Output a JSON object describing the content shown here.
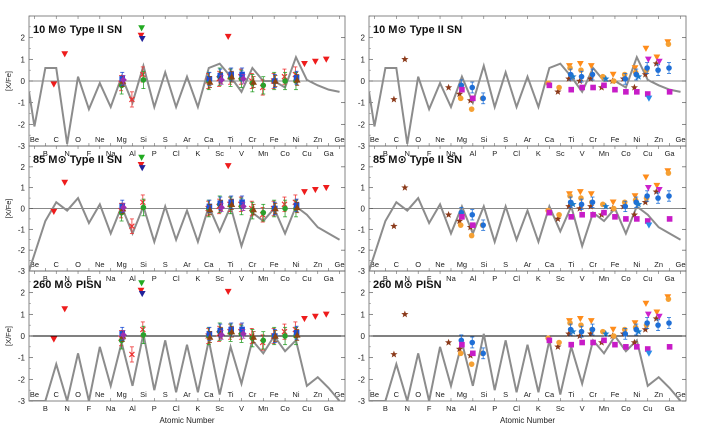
{
  "chart_data": [
    {
      "type": "scatter",
      "title": "10 M⊙ Type II SN",
      "ylabel": "[X/Fe]",
      "xlabel": "",
      "ylim": [
        -3,
        3
      ],
      "zero_line": "gray",
      "model": "10M"
    },
    {
      "type": "scatter",
      "title": "10 M⊙ Type II SN",
      "ylabel": "",
      "xlabel": "",
      "ylim": [
        -3,
        3
      ],
      "zero_line": "gray",
      "model": "10M"
    },
    {
      "type": "scatter",
      "title": "85 M⊙ Type II SN",
      "ylabel": "[X/Fe]",
      "xlabel": "",
      "ylim": [
        -3,
        3
      ],
      "zero_line": "gray",
      "model": "85M"
    },
    {
      "type": "scatter",
      "title": "85 M⊙ Type II SN",
      "ylabel": "",
      "xlabel": "",
      "ylim": [
        -3,
        3
      ],
      "zero_line": "gray",
      "model": "85M"
    },
    {
      "type": "scatter",
      "title": "260 M⊙ PISN",
      "ylabel": "[X/Fe]",
      "xlabel": "Atomic Number",
      "ylim": [
        -3,
        3
      ],
      "zero_line": "black",
      "model": "PISN"
    },
    {
      "type": "scatter",
      "title": "260 M⊙ PISN",
      "ylabel": "",
      "xlabel": "Atomic Number",
      "ylim": [
        -3,
        3
      ],
      "zero_line": "black",
      "model": "PISN"
    }
  ],
  "x_axis": {
    "xlim": [
      3.5,
      32.5
    ],
    "top_labels": [
      {
        "z": 4,
        "label": "Be"
      },
      {
        "z": 6,
        "label": "C"
      },
      {
        "z": 8,
        "label": "O"
      },
      {
        "z": 10,
        "label": "Ne"
      },
      {
        "z": 12,
        "label": "Mg"
      },
      {
        "z": 14,
        "label": "Si"
      },
      {
        "z": 16,
        "label": "S"
      },
      {
        "z": 18,
        "label": "Ar"
      },
      {
        "z": 20,
        "label": "Ca"
      },
      {
        "z": 22,
        "label": "Ti"
      },
      {
        "z": 24,
        "label": "Cr"
      },
      {
        "z": 26,
        "label": "Fe"
      },
      {
        "z": 28,
        "label": "Ni"
      },
      {
        "z": 30,
        "label": "Zn"
      },
      {
        "z": 32,
        "label": "Ge"
      }
    ],
    "bottom_labels": [
      {
        "z": 5,
        "label": "B"
      },
      {
        "z": 7,
        "label": "N"
      },
      {
        "z": 9,
        "label": "F"
      },
      {
        "z": 11,
        "label": "Na"
      },
      {
        "z": 13,
        "label": "Al"
      },
      {
        "z": 15,
        "label": "P"
      },
      {
        "z": 17,
        "label": "Cl"
      },
      {
        "z": 19,
        "label": "K"
      },
      {
        "z": 21,
        "label": "Sc"
      },
      {
        "z": 23,
        "label": "V"
      },
      {
        "z": 25,
        "label": "Mn"
      },
      {
        "z": 27,
        "label": "Co"
      },
      {
        "z": 29,
        "label": "Cu"
      },
      {
        "z": 31,
        "label": "Ga"
      }
    ],
    "yticks": [
      -3,
      -2,
      -1,
      0,
      1,
      2
    ]
  },
  "models": {
    "10M": [
      [
        3.5,
        -0.5
      ],
      [
        4,
        -2.1
      ],
      [
        5,
        0.6
      ],
      [
        6,
        0.6
      ],
      [
        7,
        -2.9
      ],
      [
        8,
        0.2
      ],
      [
        9,
        -1.3
      ],
      [
        10,
        -0.1
      ],
      [
        11,
        -1.2
      ],
      [
        12,
        0.2
      ],
      [
        13,
        -1.0
      ],
      [
        14,
        0.7
      ],
      [
        15,
        -1.2
      ],
      [
        16,
        0.4
      ],
      [
        17,
        -1.2
      ],
      [
        18,
        0.2
      ],
      [
        19,
        -1.2
      ],
      [
        20,
        0.6
      ],
      [
        21,
        0.8
      ],
      [
        22,
        0.2
      ],
      [
        23,
        -0.5
      ],
      [
        24,
        0.6
      ],
      [
        25,
        0.0
      ],
      [
        26,
        0.0
      ],
      [
        27,
        -0.3
      ],
      [
        28,
        1.1
      ],
      [
        29,
        0.05
      ],
      [
        30,
        -0.2
      ],
      [
        31,
        -0.4
      ],
      [
        32,
        -0.5
      ]
    ],
    "85M": [
      [
        3.5,
        -3.0
      ],
      [
        4,
        -2.2
      ],
      [
        5,
        -0.6
      ],
      [
        6,
        0.3
      ],
      [
        7,
        -0.1
      ],
      [
        8,
        0.5
      ],
      [
        9,
        -0.7
      ],
      [
        10,
        0.2
      ],
      [
        11,
        -1.2
      ],
      [
        12,
        0.1
      ],
      [
        13,
        -1.2
      ],
      [
        14,
        0.1
      ],
      [
        15,
        -1.6
      ],
      [
        16,
        0.1
      ],
      [
        17,
        -1.5
      ],
      [
        18,
        -0.1
      ],
      [
        19,
        -1.6
      ],
      [
        20,
        0.1
      ],
      [
        21,
        -1.1
      ],
      [
        22,
        0.1
      ],
      [
        23,
        -1.8
      ],
      [
        24,
        -0.2
      ],
      [
        25,
        -0.6
      ],
      [
        26,
        0.0
      ],
      [
        27,
        -1.2
      ],
      [
        28,
        0.1
      ],
      [
        29,
        -0.3
      ],
      [
        30,
        -0.9
      ],
      [
        31,
        -1.2
      ],
      [
        32,
        -1.5
      ]
    ],
    "PISN": [
      [
        3.5,
        -3.0
      ],
      [
        4,
        -3.0
      ],
      [
        5,
        -3.0
      ],
      [
        6,
        -1.3
      ],
      [
        7,
        -3.0
      ],
      [
        8,
        -0.8
      ],
      [
        9,
        -3.0
      ],
      [
        10,
        -0.5
      ],
      [
        11,
        -2.3
      ],
      [
        12,
        -0.3
      ],
      [
        13,
        -2.3
      ],
      [
        14,
        0.1
      ],
      [
        15,
        -2.5
      ],
      [
        16,
        -0.2
      ],
      [
        17,
        -2.6
      ],
      [
        18,
        -0.4
      ],
      [
        19,
        -2.6
      ],
      [
        20,
        -0.2
      ],
      [
        21,
        -2.7
      ],
      [
        22,
        -0.5
      ],
      [
        23,
        -2.2
      ],
      [
        24,
        -0.2
      ],
      [
        25,
        -0.8
      ],
      [
        26,
        0.0
      ],
      [
        27,
        -0.7
      ],
      [
        28,
        -0.2
      ],
      [
        29,
        -2.3
      ],
      [
        30,
        -1.9
      ],
      [
        31,
        -2.4
      ],
      [
        32,
        -3.0
      ]
    ]
  },
  "left_observations": [
    {
      "name": "red-down-triangle",
      "color": "#ee1c1c",
      "marker": "tri_down",
      "points": [
        [
          6,
          -0.15
        ],
        [
          7,
          1.25
        ],
        [
          14,
          2.1
        ],
        [
          22,
          2.05
        ],
        [
          29,
          0.8
        ],
        [
          30,
          0.9
        ],
        [
          31,
          1.0
        ]
      ]
    },
    {
      "name": "green-down-triangle",
      "color": "#22aa22",
      "marker": "tri_down",
      "points": [
        [
          14,
          2.45
        ]
      ]
    },
    {
      "name": "navy-down-triangle",
      "color": "#22229a",
      "marker": "tri_down",
      "points": [
        [
          14,
          1.95
        ]
      ]
    },
    {
      "name": "red-cross",
      "color": "#ee3333",
      "marker": "cross",
      "points": [
        [
          12,
          -0.1
        ],
        [
          13,
          -0.85
        ],
        [
          14,
          0.3
        ],
        [
          20,
          0.0
        ],
        [
          21,
          0.1
        ],
        [
          22,
          0.2
        ],
        [
          23,
          0.2
        ],
        [
          24,
          0.0
        ],
        [
          25,
          -0.3
        ],
        [
          26,
          0.0
        ],
        [
          27,
          0.2
        ],
        [
          28,
          0.3
        ]
      ],
      "err": 0.35
    },
    {
      "name": "green-circle",
      "color": "#2ca02c",
      "marker": "circle",
      "points": [
        [
          12,
          -0.2
        ],
        [
          14,
          0.05
        ],
        [
          20,
          0.0
        ],
        [
          21,
          0.2
        ],
        [
          22,
          0.15
        ],
        [
          23,
          0.1
        ],
        [
          24,
          -0.1
        ],
        [
          25,
          -0.2
        ],
        [
          26,
          0.0
        ],
        [
          27,
          0.0
        ],
        [
          28,
          0.0
        ]
      ],
      "err": 0.4
    },
    {
      "name": "blue-square",
      "color": "#1f4fd6",
      "marker": "square",
      "points": [
        [
          12,
          0.1
        ],
        [
          20,
          0.1
        ],
        [
          21,
          0.25
        ],
        [
          22,
          0.3
        ],
        [
          23,
          0.3
        ],
        [
          26,
          0.0
        ],
        [
          28,
          0.15
        ]
      ],
      "err": 0.3
    },
    {
      "name": "brown-triangle",
      "color": "#8b4513",
      "marker": "tri_up",
      "points": [
        [
          12,
          0.0
        ],
        [
          20,
          -0.05
        ],
        [
          21,
          0.15
        ],
        [
          22,
          0.2
        ],
        [
          24,
          -0.05
        ],
        [
          26,
          0.0
        ],
        [
          28,
          0.05
        ]
      ],
      "err": 0.25
    },
    {
      "name": "purple-diamond",
      "color": "#9b30b0",
      "marker": "diamond",
      "points": [
        [
          12,
          0.05
        ],
        [
          21,
          0.05
        ],
        [
          23,
          0.1
        ]
      ],
      "err": 0.2
    }
  ],
  "right_observations": [
    {
      "name": "brown-star",
      "color": "#8b3a1a",
      "marker": "star",
      "points": [
        [
          6,
          -0.85
        ],
        [
          7,
          1.0
        ],
        [
          11,
          -0.3
        ],
        [
          12,
          -0.6
        ],
        [
          13,
          -0.9
        ],
        [
          21,
          -0.5
        ],
        [
          22,
          0.1
        ],
        [
          23,
          0.0
        ],
        [
          24,
          0.1
        ],
        [
          25,
          -0.3
        ],
        [
          26,
          0.0
        ],
        [
          27,
          0.1
        ],
        [
          28,
          -0.3
        ],
        [
          29,
          0.3
        ],
        [
          30,
          0.8
        ]
      ]
    },
    {
      "name": "orange-down-triangle",
      "color": "#ff8c1a",
      "marker": "tri_down",
      "points": [
        [
          22,
          0.7
        ],
        [
          23,
          0.8
        ],
        [
          24,
          0.7
        ],
        [
          26,
          0.3
        ],
        [
          28,
          0.6
        ],
        [
          29,
          1.5
        ],
        [
          30,
          1.1
        ],
        [
          31,
          1.8
        ]
      ]
    },
    {
      "name": "orange-circle",
      "color": "#f5a033",
      "marker": "circle",
      "points": [
        [
          12,
          -0.8
        ],
        [
          13,
          -1.3
        ],
        [
          14,
          -0.8
        ],
        [
          20,
          -0.1
        ],
        [
          21,
          -0.3
        ],
        [
          22,
          0.6
        ],
        [
          23,
          0.5
        ],
        [
          24,
          0.3
        ],
        [
          25,
          0.2
        ],
        [
          26,
          0.0
        ],
        [
          27,
          0.3
        ],
        [
          28,
          0.4
        ],
        [
          29,
          0.5
        ],
        [
          31,
          1.7
        ]
      ]
    },
    {
      "name": "blue-circle",
      "color": "#1f6fd6",
      "marker": "circle",
      "points": [
        [
          12,
          -0.2
        ],
        [
          13,
          -0.3
        ],
        [
          14,
          -0.8
        ],
        [
          22,
          0.3
        ],
        [
          23,
          0.2
        ],
        [
          24,
          0.3
        ],
        [
          27,
          0.1
        ],
        [
          28,
          0.3
        ],
        [
          29,
          0.6
        ],
        [
          30,
          0.5
        ],
        [
          31,
          0.6
        ]
      ],
      "err": 0.25
    },
    {
      "name": "magenta-square",
      "color": "#c71cc7",
      "marker": "square",
      "points": [
        [
          12,
          -0.4
        ],
        [
          13,
          -0.8
        ],
        [
          20,
          -0.2
        ],
        [
          22,
          -0.4
        ],
        [
          23,
          -0.3
        ],
        [
          24,
          -0.3
        ],
        [
          25,
          -0.2
        ],
        [
          26,
          -0.4
        ],
        [
          27,
          -0.5
        ],
        [
          28,
          -0.5
        ],
        [
          29,
          -0.6
        ],
        [
          31,
          -0.5
        ]
      ]
    },
    {
      "name": "purple-down-triangle",
      "color": "#cc22cc",
      "marker": "tri_down",
      "points": [
        [
          29,
          1.0
        ],
        [
          30,
          0.9
        ]
      ]
    },
    {
      "name": "cyan-down-triangle",
      "color": "#2a8ce8",
      "marker": "tri_down",
      "points": [
        [
          29,
          -0.8
        ]
      ]
    },
    {
      "name": "teal-star",
      "color": "#1a7acc",
      "marker": "star",
      "points": [
        [
          22,
          0.2
        ],
        [
          25,
          0.1
        ],
        [
          28,
          0.2
        ]
      ]
    }
  ]
}
